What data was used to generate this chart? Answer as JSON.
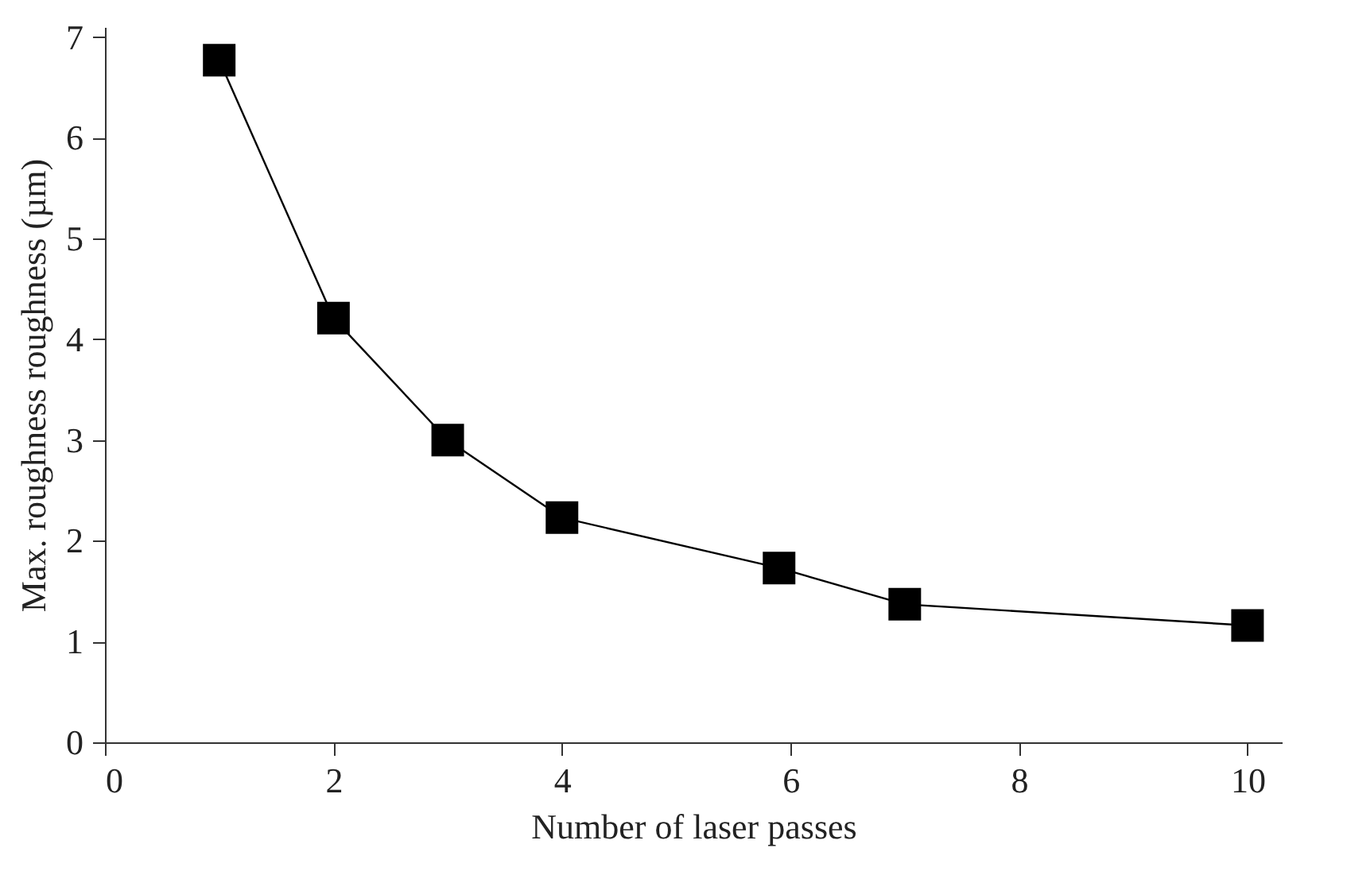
{
  "chart_data": {
    "type": "line",
    "xlabel": "Number of laser passes",
    "ylabel": "Max. roughness roughness (µm)",
    "x": [
      1,
      2,
      3,
      4,
      5.9,
      7,
      10
    ],
    "series": [
      {
        "color": "#000000",
        "values": [
          6.77,
          4.21,
          3.0,
          2.23,
          1.73,
          1.37,
          1.16
        ]
      }
    ],
    "xlim": [
      0,
      10.3
    ],
    "xticks": [
      0,
      2,
      4,
      6,
      8,
      10
    ],
    "ylim": [
      0,
      7.1
    ],
    "yticks": [
      0,
      1,
      2,
      3,
      4,
      5,
      6,
      7
    ],
    "grid": false,
    "marker": "square",
    "line_style": "solid"
  }
}
